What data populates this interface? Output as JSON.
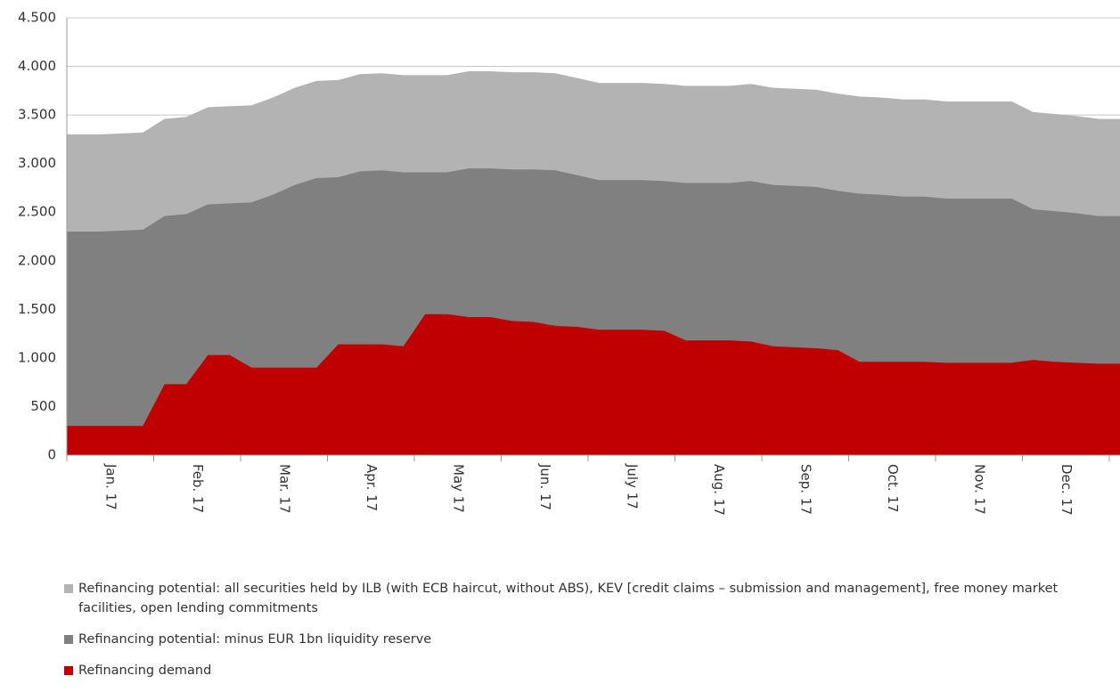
{
  "chart_data": {
    "type": "area",
    "categories": [
      null,
      "Jan. 17",
      null,
      null,
      null,
      "Feb. 17",
      null,
      null,
      null,
      "Mar. 17",
      null,
      null,
      null,
      "Apr. 17",
      null,
      null,
      null,
      "May 17",
      null,
      null,
      null,
      "Jun. 17",
      null,
      null,
      null,
      "July 17",
      null,
      null,
      null,
      "Aug. 17",
      null,
      null,
      null,
      "Sep. 17",
      null,
      null,
      null,
      "Oct. 17",
      null,
      null,
      null,
      "Nov. 17",
      null,
      null,
      null,
      "Dec. 17",
      null,
      null
    ],
    "series": [
      {
        "name": "Refinancing potential: all securities held by ILB (with ECB haircut, without ABS), KEV [credit claims – submission and management], free money market facilities, open lending commitments",
        "color": "#b3b3b3",
        "values": [
          3300,
          3300,
          3310,
          3320,
          3460,
          3480,
          3580,
          3590,
          3600,
          3680,
          3780,
          3850,
          3860,
          3920,
          3930,
          3910,
          3910,
          3910,
          3950,
          3950,
          3940,
          3940,
          3930,
          3880,
          3830,
          3830,
          3830,
          3820,
          3800,
          3800,
          3800,
          3820,
          3780,
          3770,
          3760,
          3720,
          3690,
          3680,
          3660,
          3660,
          3640,
          3640,
          3640,
          3640,
          3530,
          3510,
          3490,
          3460
        ]
      },
      {
        "name": "Refinancing potential: minus EUR 1bn liquidity reserve",
        "color": "#808080",
        "values": [
          2300,
          2300,
          2310,
          2320,
          2460,
          2480,
          2580,
          2590,
          2600,
          2680,
          2780,
          2850,
          2860,
          2920,
          2930,
          2910,
          2910,
          2910,
          2950,
          2950,
          2940,
          2940,
          2930,
          2880,
          2830,
          2830,
          2830,
          2820,
          2800,
          2800,
          2800,
          2820,
          2780,
          2770,
          2760,
          2720,
          2690,
          2680,
          2660,
          2660,
          2640,
          2640,
          2640,
          2640,
          2530,
          2510,
          2490,
          2460
        ]
      },
      {
        "name": "Refinancing demand",
        "color": "#c00000",
        "values": [
          300,
          300,
          300,
          300,
          730,
          730,
          1030,
          1030,
          900,
          900,
          900,
          900,
          1140,
          1140,
          1140,
          1120,
          1450,
          1450,
          1420,
          1420,
          1380,
          1370,
          1330,
          1320,
          1290,
          1290,
          1290,
          1280,
          1180,
          1180,
          1180,
          1170,
          1120,
          1110,
          1100,
          1080,
          960,
          960,
          960,
          960,
          950,
          950,
          950,
          950,
          980,
          960,
          950,
          940
        ]
      }
    ],
    "ylim": [
      0,
      4500
    ],
    "yticks": [
      0,
      {
        "value": 500,
        "label": "500"
      },
      {
        "value": 1000,
        "label": "1.000"
      },
      {
        "value": 1500,
        "label": "1.500"
      },
      {
        "value": 2000,
        "label": "2.000"
      },
      {
        "value": 2500,
        "label": "2.500"
      },
      {
        "value": 3000,
        "label": "3.000"
      },
      {
        "value": 3500,
        "label": "3.500"
      },
      {
        "value": 4000,
        "label": "4.000"
      },
      {
        "value": 4500,
        "label": "4.500"
      }
    ],
    "grid": true
  }
}
